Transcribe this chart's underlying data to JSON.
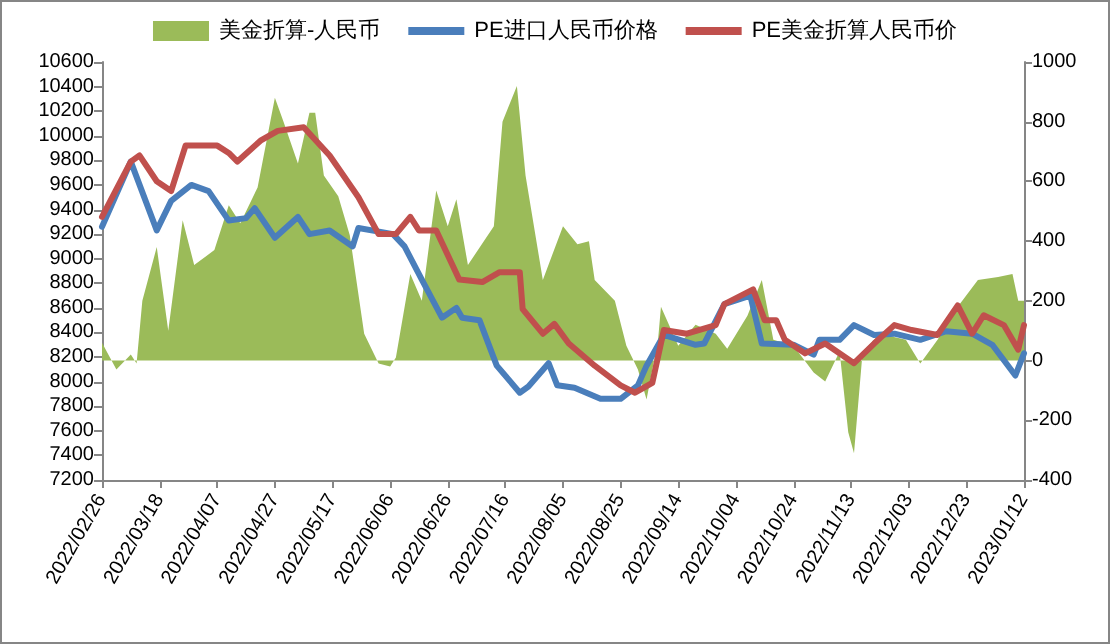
{
  "chart_data": {
    "type": "line",
    "legend": "top",
    "grid": false,
    "marker": "none",
    "line_style": "solid",
    "xlim": [
      "2022-02-26",
      "2023-01-12"
    ],
    "xticks": [
      {
        "value": "2022-02-26",
        "label": "2022/02/26"
      },
      {
        "value": "2022-03-18",
        "label": "2022/03/18"
      },
      {
        "value": "2022-04-07",
        "label": "2022/04/07"
      },
      {
        "value": "2022-04-27",
        "label": "2022/04/27"
      },
      {
        "value": "2022-05-17",
        "label": "2022/05/17"
      },
      {
        "value": "2022-06-06",
        "label": "2022/06/06"
      },
      {
        "value": "2022-06-26",
        "label": "2022/06/26"
      },
      {
        "value": "2022-07-16",
        "label": "2022/07/16"
      },
      {
        "value": "2022-08-05",
        "label": "2022/08/05"
      },
      {
        "value": "2022-08-25",
        "label": "2022/08/25"
      },
      {
        "value": "2022-09-14",
        "label": "2022/09/14"
      },
      {
        "value": "2022-10-04",
        "label": "2022/10/04"
      },
      {
        "value": "2022-10-24",
        "label": "2022/10/24"
      },
      {
        "value": "2022-11-13",
        "label": "2022/11/13"
      },
      {
        "value": "2022-12-03",
        "label": "2022/12/03"
      },
      {
        "value": "2022-12-23",
        "label": "2022/12/23"
      },
      {
        "value": "2023-01-12",
        "label": "2023/01/12"
      }
    ],
    "ylim": [
      7200,
      10600
    ],
    "yticks": [
      7200,
      7400,
      7600,
      7800,
      8000,
      8200,
      8400,
      8600,
      8800,
      9000,
      9200,
      9400,
      9600,
      9800,
      10000,
      10200,
      10400,
      10600
    ],
    "y2lim": [
      -400,
      1000
    ],
    "y2ticks": [
      -400,
      -200,
      0,
      200,
      400,
      600,
      800,
      1000
    ],
    "series": [
      {
        "name": "美金折算-人民币",
        "type": "area",
        "axis": "y2",
        "color": "#9bbb59",
        "x": [
          "2022-02-26",
          "2022-03-03",
          "2022-03-08",
          "2022-03-10",
          "2022-03-12",
          "2022-03-17",
          "2022-03-21",
          "2022-03-26",
          "2022-03-30",
          "2022-04-06",
          "2022-04-11",
          "2022-04-15",
          "2022-04-21",
          "2022-04-27",
          "2022-04-30",
          "2022-05-05",
          "2022-05-09",
          "2022-05-11",
          "2022-05-14",
          "2022-05-19",
          "2022-05-23",
          "2022-05-28",
          "2022-06-02",
          "2022-06-06",
          "2022-06-08",
          "2022-06-13",
          "2022-06-17",
          "2022-06-22",
          "2022-06-26",
          "2022-06-29",
          "2022-07-03",
          "2022-07-12",
          "2022-07-15",
          "2022-07-20",
          "2022-07-23",
          "2022-07-29",
          "2022-08-05",
          "2022-08-10",
          "2022-08-14",
          "2022-08-16",
          "2022-08-23",
          "2022-08-27",
          "2022-08-31",
          "2022-09-03",
          "2022-09-07",
          "2022-09-08",
          "2022-09-14",
          "2022-09-20",
          "2022-09-27",
          "2022-10-01",
          "2022-10-08",
          "2022-10-13",
          "2022-10-17",
          "2022-10-24",
          "2022-10-31",
          "2022-11-04",
          "2022-11-09",
          "2022-11-12",
          "2022-11-14",
          "2022-11-17",
          "2022-11-23",
          "2022-12-02",
          "2022-12-07",
          "2022-12-13",
          "2022-12-20",
          "2022-12-27",
          "2023-01-03",
          "2023-01-08",
          "2023-01-10",
          "2023-01-12"
        ],
        "values": [
          60,
          -30,
          20,
          -10,
          200,
          380,
          100,
          470,
          320,
          370,
          520,
          460,
          580,
          880,
          800,
          660,
          830,
          830,
          620,
          550,
          420,
          90,
          -10,
          -20,
          10,
          290,
          200,
          570,
          450,
          540,
          320,
          450,
          800,
          920,
          620,
          270,
          450,
          390,
          400,
          270,
          200,
          50,
          -30,
          -130,
          70,
          180,
          50,
          120,
          90,
          40,
          150,
          270,
          70,
          50,
          -40,
          -70,
          30,
          -240,
          -310,
          30,
          90,
          70,
          -10,
          70,
          180,
          270,
          280,
          290,
          200,
          200
        ]
      },
      {
        "name": "PE进口人民币价格",
        "color": "#4a7ebb",
        "x": [
          "2022-02-26",
          "2022-03-08",
          "2022-03-17",
          "2022-03-22",
          "2022-03-29",
          "2022-04-04",
          "2022-04-11",
          "2022-04-17",
          "2022-04-20",
          "2022-04-27",
          "2022-05-05",
          "2022-05-09",
          "2022-05-16",
          "2022-05-24",
          "2022-05-26",
          "2022-06-07",
          "2022-06-11",
          "2022-06-17",
          "2022-06-24",
          "2022-06-29",
          "2022-07-01",
          "2022-07-07",
          "2022-07-13",
          "2022-07-21",
          "2022-07-24",
          "2022-07-31",
          "2022-08-03",
          "2022-08-09",
          "2022-08-18",
          "2022-08-25",
          "2022-08-31",
          "2022-09-03",
          "2022-09-09",
          "2022-09-20",
          "2022-09-23",
          "2022-09-30",
          "2022-10-09",
          "2022-10-13",
          "2022-10-24",
          "2022-10-31",
          "2022-11-02",
          "2022-11-09",
          "2022-11-14",
          "2022-11-21",
          "2022-11-28",
          "2022-12-07",
          "2022-12-16",
          "2022-12-25",
          "2023-01-01",
          "2023-01-09",
          "2023-01-12"
        ],
        "values": [
          9260,
          9790,
          9230,
          9470,
          9600,
          9550,
          9310,
          9330,
          9410,
          9170,
          9340,
          9200,
          9230,
          9100,
          9250,
          9200,
          9100,
          8830,
          8520,
          8600,
          8520,
          8500,
          8130,
          7910,
          7960,
          8150,
          7970,
          7950,
          7860,
          7860,
          7970,
          8130,
          8380,
          8300,
          8310,
          8630,
          8700,
          8310,
          8300,
          8220,
          8340,
          8340,
          8460,
          8380,
          8390,
          8340,
          8410,
          8390,
          8300,
          8050,
          8230
        ]
      },
      {
        "name": "PE美金折算人民币价",
        "color": "#c0504d",
        "x": [
          "2022-02-26",
          "2022-03-08",
          "2022-03-11",
          "2022-03-17",
          "2022-03-22",
          "2022-03-27",
          "2022-04-07",
          "2022-04-11",
          "2022-04-14",
          "2022-04-22",
          "2022-04-28",
          "2022-05-07",
          "2022-05-16",
          "2022-05-26",
          "2022-06-02",
          "2022-06-08",
          "2022-06-13",
          "2022-06-16",
          "2022-06-22",
          "2022-06-30",
          "2022-07-08",
          "2022-07-14",
          "2022-07-21",
          "2022-07-22",
          "2022-07-29",
          "2022-08-02",
          "2022-08-07",
          "2022-08-16",
          "2022-08-25",
          "2022-08-30",
          "2022-09-05",
          "2022-09-09",
          "2022-09-17",
          "2022-09-27",
          "2022-09-30",
          "2022-10-10",
          "2022-10-14",
          "2022-10-18",
          "2022-10-21",
          "2022-10-28",
          "2022-11-04",
          "2022-11-14",
          "2022-11-21",
          "2022-11-28",
          "2022-12-04",
          "2022-12-13",
          "2022-12-20",
          "2022-12-25",
          "2022-12-29",
          "2023-01-05",
          "2023-01-10",
          "2023-01-12"
        ],
        "values": [
          9340,
          9790,
          9840,
          9630,
          9550,
          9920,
          9920,
          9860,
          9790,
          9960,
          10040,
          10070,
          9840,
          9500,
          9200,
          9200,
          9340,
          9230,
          9230,
          8830,
          8810,
          8890,
          8890,
          8590,
          8390,
          8470,
          8310,
          8130,
          7970,
          7910,
          7990,
          8420,
          8390,
          8460,
          8630,
          8750,
          8500,
          8500,
          8340,
          8230,
          8310,
          8150,
          8310,
          8460,
          8420,
          8380,
          8620,
          8390,
          8540,
          8460,
          8260,
          8460
        ]
      }
    ]
  }
}
